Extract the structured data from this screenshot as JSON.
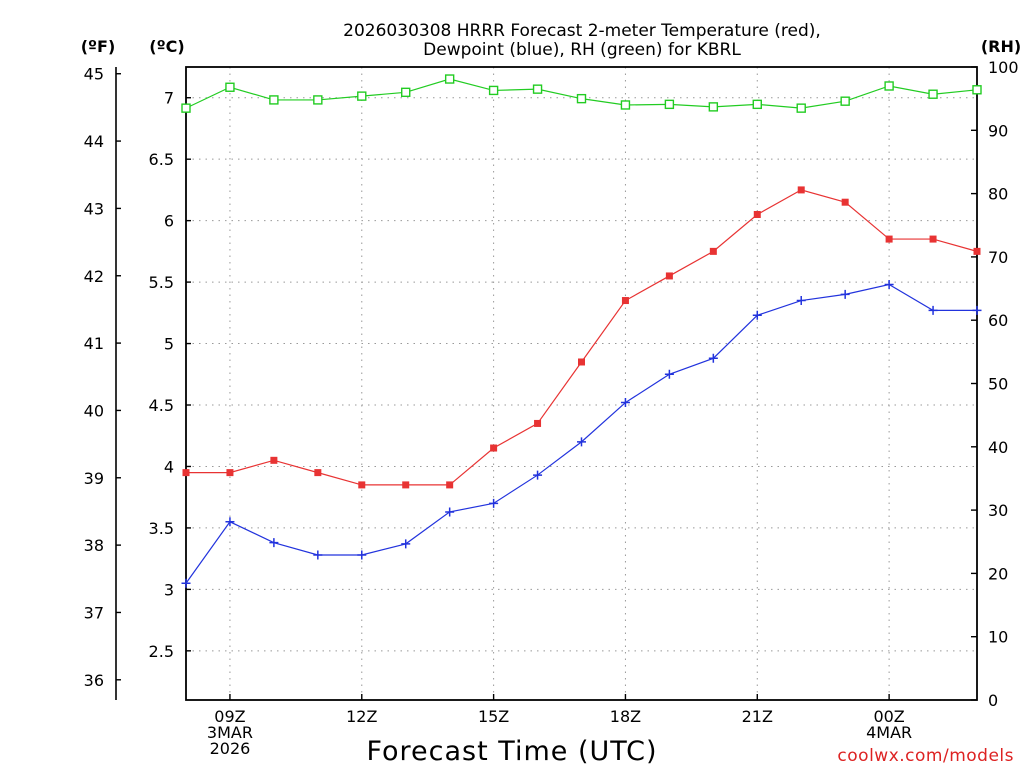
{
  "chart_data": {
    "type": "line",
    "title_lines": [
      "2026030308 HRRR Forecast 2-meter Temperature (red),",
      "Dewpoint (blue), RH (green) for KBRL"
    ],
    "xlabel": "Forecast Time (UTC)",
    "watermark": "coolwx.com/models",
    "x": [
      8,
      9,
      10,
      11,
      12,
      13,
      14,
      15,
      16,
      17,
      18,
      19,
      20,
      21,
      22,
      23,
      24,
      25,
      26
    ],
    "x_range": [
      8,
      26
    ],
    "x_ticks": [
      {
        "x": 9,
        "lines": [
          "09Z",
          "3MAR",
          "2026"
        ]
      },
      {
        "x": 12,
        "lines": [
          "12Z"
        ]
      },
      {
        "x": 15,
        "lines": [
          "15Z"
        ]
      },
      {
        "x": 18,
        "lines": [
          "18Z"
        ]
      },
      {
        "x": 21,
        "lines": [
          "21Z"
        ]
      },
      {
        "x": 24,
        "lines": [
          "00Z",
          "4MAR"
        ]
      }
    ],
    "axes": {
      "fahrenheit": {
        "unit_label": "(ºF)",
        "range": [
          35.7,
          45.1
        ],
        "ticks": [
          36,
          37,
          38,
          39,
          40,
          41,
          42,
          43,
          44,
          45
        ]
      },
      "celsius": {
        "unit_label": "(ºC)",
        "range": [
          2.1,
          7.25
        ],
        "ticks": [
          "2.5",
          "3",
          "3.5",
          "4",
          "4.5",
          "5",
          "5.5",
          "6",
          "6.5",
          "7"
        ]
      },
      "rh": {
        "unit_label": "(RH)",
        "range": [
          0,
          100
        ],
        "ticks": [
          0,
          10,
          20,
          30,
          40,
          50,
          60,
          70,
          80,
          90,
          100
        ]
      }
    },
    "grid": true,
    "series": [
      {
        "name": "Temperature",
        "color": "#e83333",
        "marker": "filled-square",
        "axis": "celsius",
        "values": [
          3.95,
          3.95,
          4.05,
          3.95,
          3.85,
          3.85,
          3.85,
          4.15,
          4.35,
          4.85,
          5.35,
          5.55,
          5.75,
          6.05,
          6.25,
          6.15,
          5.85,
          5.85,
          5.75
        ]
      },
      {
        "name": "Dewpoint",
        "color": "#2233dd",
        "marker": "plus",
        "axis": "celsius",
        "values": [
          3.05,
          3.55,
          3.38,
          3.28,
          3.28,
          3.37,
          3.63,
          3.7,
          3.93,
          4.2,
          4.52,
          4.75,
          4.88,
          5.23,
          5.35,
          5.4,
          5.48,
          5.27,
          5.27
        ]
      },
      {
        "name": "RH",
        "color": "#22cc22",
        "marker": "open-square",
        "axis": "rh",
        "values": [
          93.5,
          96.8,
          94.8,
          94.8,
          95.4,
          96.0,
          98.1,
          96.3,
          96.5,
          95.0,
          94.0,
          94.1,
          93.7,
          94.1,
          93.5,
          94.6,
          97.0,
          95.7,
          96.4
        ]
      }
    ]
  }
}
